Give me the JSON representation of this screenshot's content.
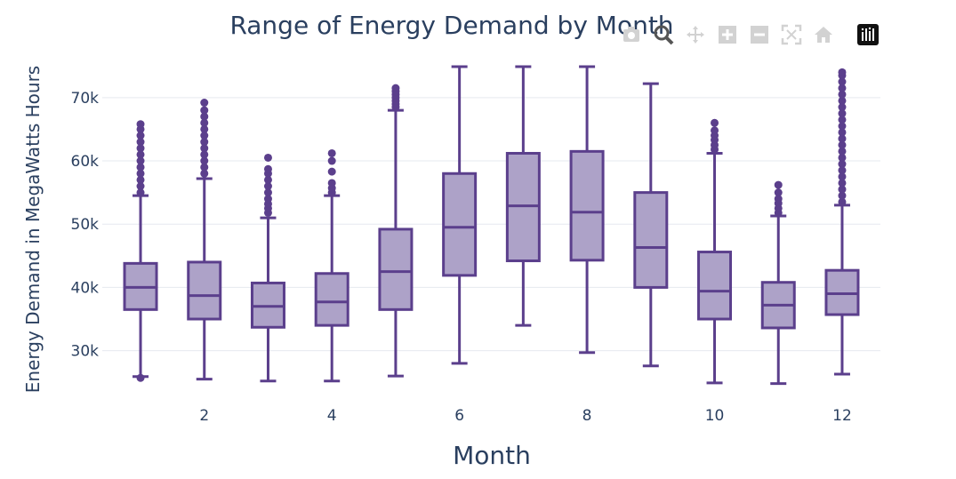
{
  "chart_data": {
    "type": "box",
    "title": "Range of Energy Demand by Month",
    "xlabel": "Month",
    "ylabel": "Energy Demand in MegaWatts Hours",
    "xlim": [
      0.4,
      12.6
    ],
    "ylim": [
      22500,
      77000
    ],
    "x_ticks": [
      2,
      4,
      6,
      8,
      10,
      12
    ],
    "x_tick_labels": [
      "2",
      "4",
      "6",
      "8",
      "10",
      "12"
    ],
    "y_ticks": [
      30000,
      40000,
      50000,
      60000,
      70000
    ],
    "y_tick_labels": [
      "30k",
      "40k",
      "50k",
      "60k",
      "70k"
    ],
    "grid": true,
    "colors": {
      "box_fill": "#ada2c8",
      "box_line": "#5b3f8c",
      "text": "#2a3f5f",
      "grid": "#e6e9ef"
    },
    "boxes": [
      {
        "month": 1,
        "min": 25900,
        "q1": 36500,
        "median": 40000,
        "q3": 43800,
        "max": 54500,
        "outliers_low": [
          25700
        ],
        "outliers_high": [
          55000,
          56000,
          57000,
          58000,
          59000,
          60000,
          61000,
          62000,
          63000,
          64000,
          65000,
          65800
        ]
      },
      {
        "month": 2,
        "min": 25500,
        "q1": 35000,
        "median": 38700,
        "q3": 44000,
        "max": 57200,
        "outliers_low": [],
        "outliers_high": [
          58000,
          59000,
          60000,
          61000,
          62000,
          63000,
          64000,
          65000,
          66000,
          67000,
          68000,
          69200
        ]
      },
      {
        "month": 3,
        "min": 25200,
        "q1": 33700,
        "median": 37000,
        "q3": 40700,
        "max": 51000,
        "outliers_low": [],
        "outliers_high": [
          51800,
          52500,
          53200,
          54000,
          55000,
          56000,
          57000,
          58000,
          58700,
          60500
        ]
      },
      {
        "month": 4,
        "min": 25200,
        "q1": 34000,
        "median": 37700,
        "q3": 42200,
        "max": 54500,
        "outliers_low": [],
        "outliers_high": [
          55000,
          55700,
          56500,
          58300,
          60000,
          61200
        ]
      },
      {
        "month": 5,
        "min": 26000,
        "q1": 36500,
        "median": 42500,
        "q3": 49200,
        "max": 68000,
        "outliers_low": [],
        "outliers_high": [
          68500,
          69000,
          69500,
          70000,
          70500,
          71000,
          71500
        ]
      },
      {
        "month": 6,
        "min": 28000,
        "q1": 41900,
        "median": 49500,
        "q3": 58000,
        "max": 74900,
        "outliers_low": [],
        "outliers_high": []
      },
      {
        "month": 7,
        "min": 34000,
        "q1": 44200,
        "median": 52900,
        "q3": 61200,
        "max": 74900,
        "outliers_low": [],
        "outliers_high": []
      },
      {
        "month": 8,
        "min": 29700,
        "q1": 44300,
        "median": 51900,
        "q3": 61500,
        "max": 74900,
        "outliers_low": [],
        "outliers_high": []
      },
      {
        "month": 9,
        "min": 27600,
        "q1": 40000,
        "median": 46300,
        "q3": 55000,
        "max": 72200,
        "outliers_low": [],
        "outliers_high": []
      },
      {
        "month": 10,
        "min": 24900,
        "q1": 35000,
        "median": 39400,
        "q3": 45600,
        "max": 61200,
        "outliers_low": [],
        "outliers_high": [
          61800,
          62500,
          63300,
          64000,
          64800,
          66000
        ]
      },
      {
        "month": 11,
        "min": 24800,
        "q1": 33600,
        "median": 37200,
        "q3": 40800,
        "max": 51300,
        "outliers_low": [],
        "outliers_high": [
          51800,
          52500,
          53300,
          54000,
          55000,
          56200
        ]
      },
      {
        "month": 12,
        "min": 26300,
        "q1": 35700,
        "median": 39000,
        "q3": 42700,
        "max": 53000,
        "outliers_low": [],
        "outliers_high": [
          53500,
          54500,
          55500,
          56500,
          57500,
          58500,
          59500,
          60500,
          61500,
          62500,
          63500,
          64500,
          65500,
          66500,
          67500,
          68500,
          69500,
          70500,
          71500,
          72500,
          73500,
          74000
        ]
      }
    ]
  },
  "modebar": {
    "buttons": [
      {
        "id": "download",
        "icon": "camera-icon"
      },
      {
        "id": "zoom",
        "icon": "zoom-icon"
      },
      {
        "id": "pan",
        "icon": "pan-icon"
      },
      {
        "id": "zoom-in",
        "icon": "zoom-in-icon"
      },
      {
        "id": "zoom-out",
        "icon": "zoom-out-icon"
      },
      {
        "id": "autoscale",
        "icon": "autoscale-icon"
      },
      {
        "id": "reset",
        "icon": "home-icon"
      },
      {
        "id": "logo",
        "icon": "plotly-logo-icon"
      }
    ]
  }
}
